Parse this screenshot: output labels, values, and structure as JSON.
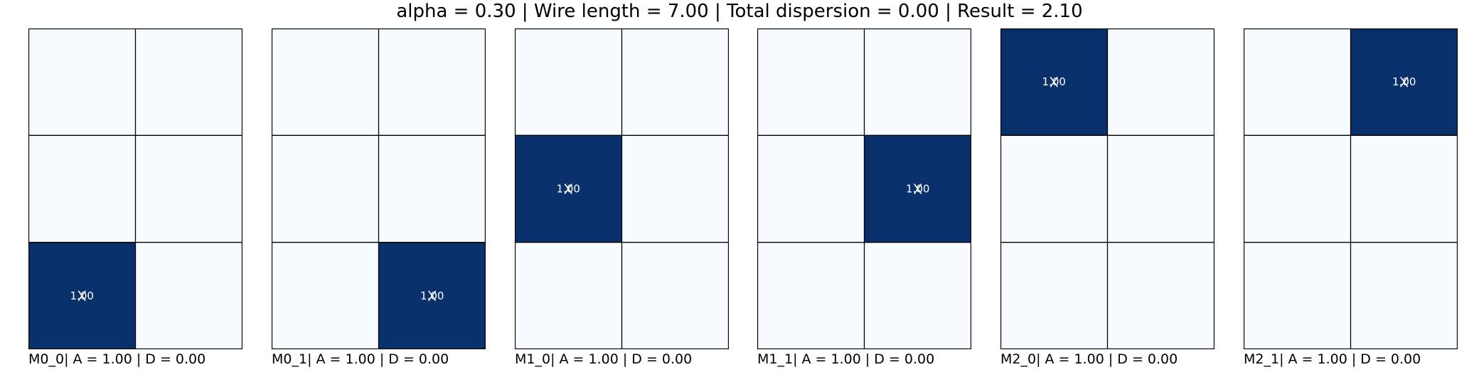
{
  "suptitle": "alpha = 0.30 | Wire length = 7.00 | Total dispersion = 0.00 | Result = 2.10",
  "colors": {
    "empty": "#f7fbff",
    "filled": "#08306b",
    "grid_line": "#000000",
    "label": "#ffffff"
  },
  "chart_data": [
    {
      "type": "heatmap",
      "title": "",
      "caption": "M0_0| A = 1.00 | D = 0.00",
      "rows": 3,
      "cols": 2,
      "values": [
        [
          0,
          0
        ],
        [
          0,
          0
        ],
        [
          1,
          0
        ]
      ],
      "labels": [
        [
          null,
          null
        ],
        [
          null,
          null
        ],
        [
          "1.00",
          null
        ]
      ],
      "marker": [
        2,
        0
      ]
    },
    {
      "type": "heatmap",
      "title": "",
      "caption": "M0_1| A = 1.00 | D = 0.00",
      "rows": 3,
      "cols": 2,
      "values": [
        [
          0,
          0
        ],
        [
          0,
          0
        ],
        [
          0,
          1
        ]
      ],
      "labels": [
        [
          null,
          null
        ],
        [
          null,
          null
        ],
        [
          null,
          "1.00"
        ]
      ],
      "marker": [
        2,
        1
      ]
    },
    {
      "type": "heatmap",
      "title": "",
      "caption": "M1_0| A = 1.00 | D = 0.00",
      "rows": 3,
      "cols": 2,
      "values": [
        [
          0,
          0
        ],
        [
          1,
          0
        ],
        [
          0,
          0
        ]
      ],
      "labels": [
        [
          null,
          null
        ],
        [
          "1.00",
          null
        ],
        [
          null,
          null
        ]
      ],
      "marker": [
        1,
        0
      ]
    },
    {
      "type": "heatmap",
      "title": "",
      "caption": "M1_1| A = 1.00 | D = 0.00",
      "rows": 3,
      "cols": 2,
      "values": [
        [
          0,
          0
        ],
        [
          0,
          1
        ],
        [
          0,
          0
        ]
      ],
      "labels": [
        [
          null,
          null
        ],
        [
          null,
          "1.00"
        ],
        [
          null,
          null
        ]
      ],
      "marker": [
        1,
        1
      ]
    },
    {
      "type": "heatmap",
      "title": "",
      "caption": "M2_0| A = 1.00 | D = 0.00",
      "rows": 3,
      "cols": 2,
      "values": [
        [
          1,
          0
        ],
        [
          0,
          0
        ],
        [
          0,
          0
        ]
      ],
      "labels": [
        [
          "1.00",
          null
        ],
        [
          null,
          null
        ],
        [
          null,
          null
        ]
      ],
      "marker": [
        0,
        0
      ]
    },
    {
      "type": "heatmap",
      "title": "",
      "caption": "M2_1| A = 1.00 | D = 0.00",
      "rows": 3,
      "cols": 2,
      "values": [
        [
          0,
          1
        ],
        [
          0,
          0
        ],
        [
          0,
          0
        ]
      ],
      "labels": [
        [
          null,
          "1.00"
        ],
        [
          null,
          null
        ],
        [
          null,
          null
        ]
      ],
      "marker": [
        0,
        1
      ]
    }
  ]
}
